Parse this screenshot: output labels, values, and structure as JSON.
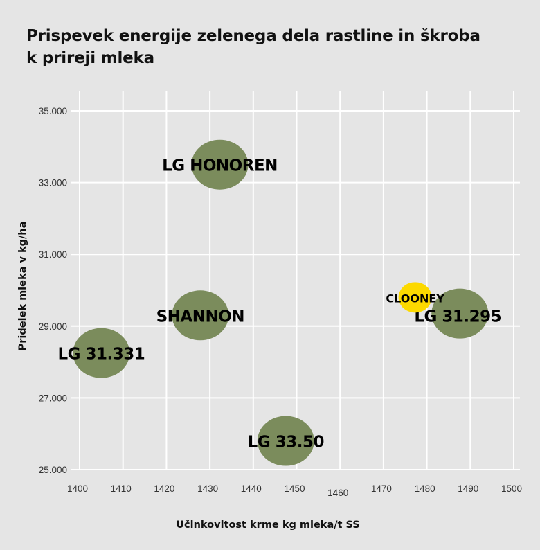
{
  "chart_data": {
    "type": "scatter",
    "title_lines": [
      "Prispevek energije zelenega dela rastline in škroba",
      "k prireji mleka"
    ],
    "xlabel": "Učinkovitost krme kg mleka/t SS",
    "ylabel": "Pridelek mleka v kg/ha",
    "xlim": [
      1400,
      1500
    ],
    "ylim": [
      25000,
      35000
    ],
    "x_ticks": [
      1400,
      1410,
      1420,
      1430,
      1440,
      1450,
      1460,
      1470,
      1480,
      1490,
      1500
    ],
    "x_tick_labels": [
      "1400",
      "1410",
      "1420",
      "1430",
      "1440",
      "1450",
      "1460",
      "1470",
      "1480",
      "1490",
      "1500"
    ],
    "y_ticks": [
      25000,
      27000,
      29000,
      31000,
      33000,
      35000
    ],
    "y_tick_labels": [
      "25.000",
      "27.000",
      "29.000",
      "31.000",
      "33.000",
      "35.000"
    ],
    "grid": true,
    "colors": {
      "green": "#7b8c5c",
      "yellow": "#fcd900",
      "background": "#e5e5e5",
      "grid": "#ffffff"
    },
    "points": [
      {
        "label": "LG HONOREN",
        "x": 1432.3,
        "y": 33500,
        "color": "green"
      },
      {
        "label": "SHANNON",
        "x": 1427.8,
        "y": 29300,
        "color": "green"
      },
      {
        "label": "LG 31.331",
        "x": 1405.0,
        "y": 28250,
        "color": "green"
      },
      {
        "label": "LG 33.50",
        "x": 1447.5,
        "y": 25800,
        "color": "green"
      },
      {
        "label": "LG 31.295",
        "x": 1487.6,
        "y": 29350,
        "color": "green"
      },
      {
        "label": "CLOONEY",
        "x": 1477.3,
        "y": 29800,
        "color": "yellow"
      }
    ]
  }
}
